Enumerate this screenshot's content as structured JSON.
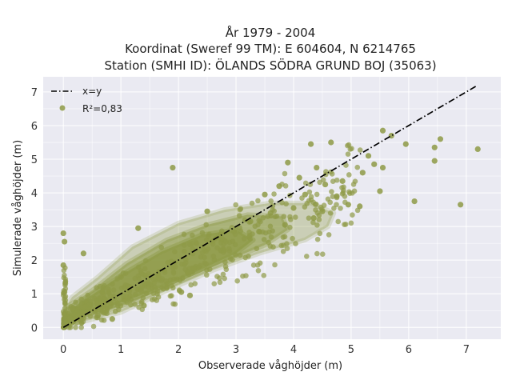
{
  "chart_data": {
    "type": "scatter",
    "title_lines": [
      "År 1979 - 2004",
      "Koordinat (Sweref 99 TM): E 604604, N 6214765",
      "Station (SMHI ID): ÖLANDS SÖDRA GRUND BOJ (35063)"
    ],
    "xlabel": "Observerade våghöjder (m)",
    "ylabel": "Simulerade våghöjder (m)",
    "xlim": [
      -0.35,
      7.6
    ],
    "ylim": [
      -0.35,
      7.45
    ],
    "xticks": [
      0,
      1,
      2,
      3,
      4,
      5,
      6,
      7
    ],
    "yticks": [
      0,
      1,
      2,
      3,
      4,
      5,
      6,
      7
    ],
    "grid": true,
    "background": "#eaeaf2",
    "legend_position": "top-left",
    "legend": [
      {
        "label": "x=y",
        "style": "dash-dot line",
        "color": "#000000"
      },
      {
        "label": "R²=0,83",
        "style": "marker",
        "color": "#8e9a47"
      }
    ],
    "reference_line": {
      "name": "x=y",
      "x": [
        0,
        7.2
      ],
      "y": [
        0,
        7.2
      ],
      "color": "#000000"
    },
    "scatter_color": "#8e9a47",
    "series": [
      {
        "name": "R²=0,83",
        "points": [
          [
            7.2,
            5.3
          ],
          [
            6.9,
            3.65
          ],
          [
            6.55,
            5.6
          ],
          [
            6.45,
            5.35
          ],
          [
            6.45,
            4.95
          ],
          [
            6.1,
            3.75
          ],
          [
            5.95,
            5.45
          ],
          [
            5.7,
            5.7
          ],
          [
            5.55,
            5.85
          ],
          [
            5.55,
            4.75
          ],
          [
            5.5,
            4.05
          ],
          [
            5.4,
            4.85
          ],
          [
            5.3,
            5.1
          ],
          [
            5.2,
            4.6
          ],
          [
            5.15,
            3.6
          ],
          [
            4.95,
            3.65
          ],
          [
            4.85,
            4.35
          ],
          [
            4.75,
            3.9
          ],
          [
            4.65,
            5.5
          ],
          [
            4.55,
            4.25
          ],
          [
            4.5,
            3.45
          ],
          [
            4.4,
            4.75
          ],
          [
            4.35,
            3.25
          ],
          [
            4.3,
            5.45
          ],
          [
            4.2,
            3.95
          ],
          [
            4.1,
            4.45
          ],
          [
            4.0,
            3.55
          ],
          [
            3.9,
            4.9
          ],
          [
            3.85,
            3.05
          ],
          [
            3.75,
            4.2
          ],
          [
            3.6,
            3.4
          ],
          [
            3.5,
            3.95
          ],
          [
            3.4,
            2.85
          ],
          [
            3.25,
            3.15
          ],
          [
            0.35,
            2.2
          ],
          [
            0.0,
            2.8
          ],
          [
            0.02,
            2.55
          ],
          [
            0.0,
            1.85
          ],
          [
            1.8,
            1.2
          ],
          [
            2.05,
            1.05
          ],
          [
            1.9,
            4.75
          ],
          [
            2.5,
            3.45
          ],
          [
            1.3,
            2.95
          ],
          [
            1.0,
            1.5
          ],
          [
            0.6,
            0.35
          ],
          [
            0.85,
            0.25
          ],
          [
            1.4,
            0.65
          ],
          [
            2.2,
            0.95
          ]
        ]
      }
    ]
  }
}
